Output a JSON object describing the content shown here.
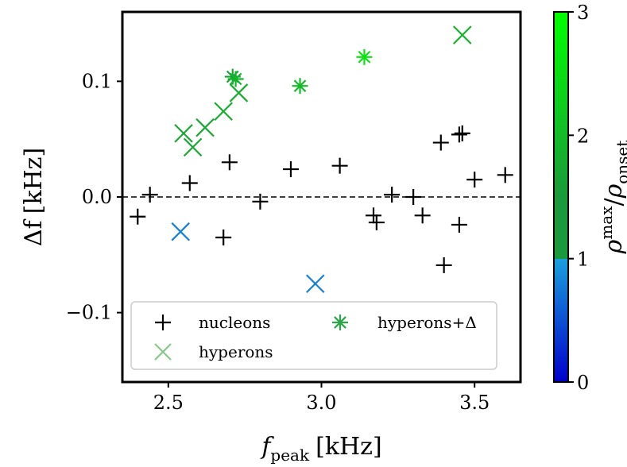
{
  "chart_data": {
    "type": "scatter",
    "xlabel": "f",
    "xlabel_sub": "peak",
    "xlabel_unit": "[kHz]",
    "ylabel": "Δf",
    "ylabel_unit": "[kHz]",
    "xlim": [
      2.35,
      3.65
    ],
    "ylim": [
      -0.16,
      0.16
    ],
    "xticks": [
      2.5,
      3.0,
      3.5
    ],
    "xtick_labels": [
      "2.5",
      "3.0",
      "3.5"
    ],
    "yticks": [
      -0.1,
      0.0,
      0.1
    ],
    "ytick_labels": [
      "−0.1",
      "0.0",
      "0.1"
    ],
    "reference_line_y": 0.0,
    "grid": false,
    "legend_position": "lower-left",
    "legend": {
      "nucleons": "nucleons",
      "hyperons": "hyperons",
      "hyperons_delta": "hyperons+Δ"
    },
    "colorbar": {
      "label_base": "ρ",
      "label_sup": "max",
      "label_sub": "onset",
      "range": [
        0,
        3
      ],
      "ticks": [
        0,
        1,
        2,
        3
      ],
      "tick_labels": [
        "0",
        "1",
        "2",
        "3"
      ],
      "colors": [
        "#0000cc",
        "#1aa0dd",
        "#1a9a3a",
        "#00ff00"
      ]
    },
    "series": [
      {
        "name": "nucleons",
        "marker": "plus",
        "color": "#000000",
        "points": [
          [
            2.4,
            -0.017
          ],
          [
            2.44,
            0.002
          ],
          [
            2.57,
            0.012
          ],
          [
            2.68,
            -0.035
          ],
          [
            2.7,
            0.03
          ],
          [
            2.8,
            -0.004
          ],
          [
            2.9,
            0.024
          ],
          [
            3.06,
            0.027
          ],
          [
            3.17,
            -0.016
          ],
          [
            3.18,
            -0.022
          ],
          [
            3.23,
            0.002
          ],
          [
            3.3,
            0.0
          ],
          [
            3.33,
            -0.016
          ],
          [
            3.39,
            0.047
          ],
          [
            3.4,
            -0.059
          ],
          [
            3.45,
            0.054
          ],
          [
            3.46,
            0.055
          ],
          [
            3.45,
            -0.024
          ],
          [
            3.5,
            0.015
          ],
          [
            3.6,
            0.019
          ]
        ]
      },
      {
        "name": "hyperons",
        "marker": "x",
        "points": [
          [
            2.54,
            -0.03,
            0.8
          ],
          [
            2.98,
            -0.075,
            0.8
          ],
          [
            2.55,
            0.055,
            1.7
          ],
          [
            2.58,
            0.043,
            1.7
          ],
          [
            2.62,
            0.06,
            1.7
          ],
          [
            2.68,
            0.074,
            1.8
          ],
          [
            2.73,
            0.09,
            1.8
          ],
          [
            3.46,
            0.14,
            1.9
          ]
        ]
      },
      {
        "name": "hyperons+Δ",
        "marker": "asterisk",
        "points": [
          [
            2.71,
            0.104,
            1.6
          ],
          [
            2.72,
            0.102,
            1.9
          ],
          [
            2.93,
            0.096,
            2.0
          ],
          [
            3.14,
            0.121,
            2.6
          ]
        ]
      }
    ]
  }
}
